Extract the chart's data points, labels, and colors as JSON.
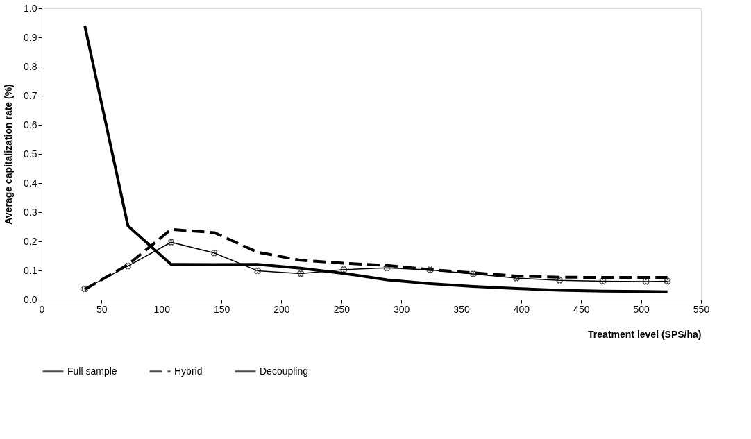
{
  "chart_data": {
    "type": "line",
    "xlabel": "Treatment level (SPS/ha)",
    "ylabel": "Average capitalization rate (%)",
    "x": [
      36,
      72,
      108,
      144,
      180,
      216,
      252,
      288,
      324,
      360,
      396,
      432,
      468,
      504,
      522
    ],
    "series": [
      {
        "name": "Full sample",
        "color": "#000000",
        "line_style": "solid",
        "marker": "none",
        "values": [
          0.94,
          0.253,
          0.121,
          0.12,
          0.121,
          0.108,
          0.09,
          0.068,
          0.055,
          0.045,
          0.038,
          0.032,
          0.029,
          0.028,
          0.027
        ]
      },
      {
        "name": "Hybrid",
        "color": "#000000",
        "line_style": "dashed",
        "marker": "none",
        "values": [
          0.035,
          0.12,
          0.241,
          0.23,
          0.163,
          0.135,
          0.125,
          0.117,
          0.103,
          0.092,
          0.081,
          0.077,
          0.076,
          0.076,
          0.076
        ]
      },
      {
        "name": "Decoupling",
        "color": "#000000",
        "line_style": "solid",
        "marker": "cross",
        "values": [
          0.037,
          0.115,
          0.197,
          0.16,
          0.099,
          0.089,
          0.103,
          0.109,
          0.102,
          0.088,
          0.074,
          0.066,
          0.063,
          0.062,
          0.063
        ]
      }
    ],
    "xlim": [
      0,
      550
    ],
    "xticks": [
      0,
      50,
      100,
      150,
      200,
      250,
      300,
      350,
      400,
      450,
      500,
      550
    ],
    "ylim": [
      0,
      1.0
    ],
    "yticks": [
      {
        "value": 0,
        "label": "0.0"
      },
      {
        "value": 0.1,
        "label": "0.1"
      },
      {
        "value": 0.2,
        "label": "0.2"
      },
      {
        "value": 0.3,
        "label": "0.3"
      },
      {
        "value": 0.4,
        "label": "0.4"
      },
      {
        "value": 0.5,
        "label": "0.5"
      },
      {
        "value": 0.6,
        "label": "0.6"
      },
      {
        "value": 0.7,
        "label": "0.7"
      },
      {
        "value": 0.8,
        "label": "0.8"
      },
      {
        "value": 0.9,
        "label": "0.9"
      },
      {
        "value": 1.0,
        "label": "1.0"
      }
    ],
    "grid": false,
    "legend": "bottom"
  }
}
